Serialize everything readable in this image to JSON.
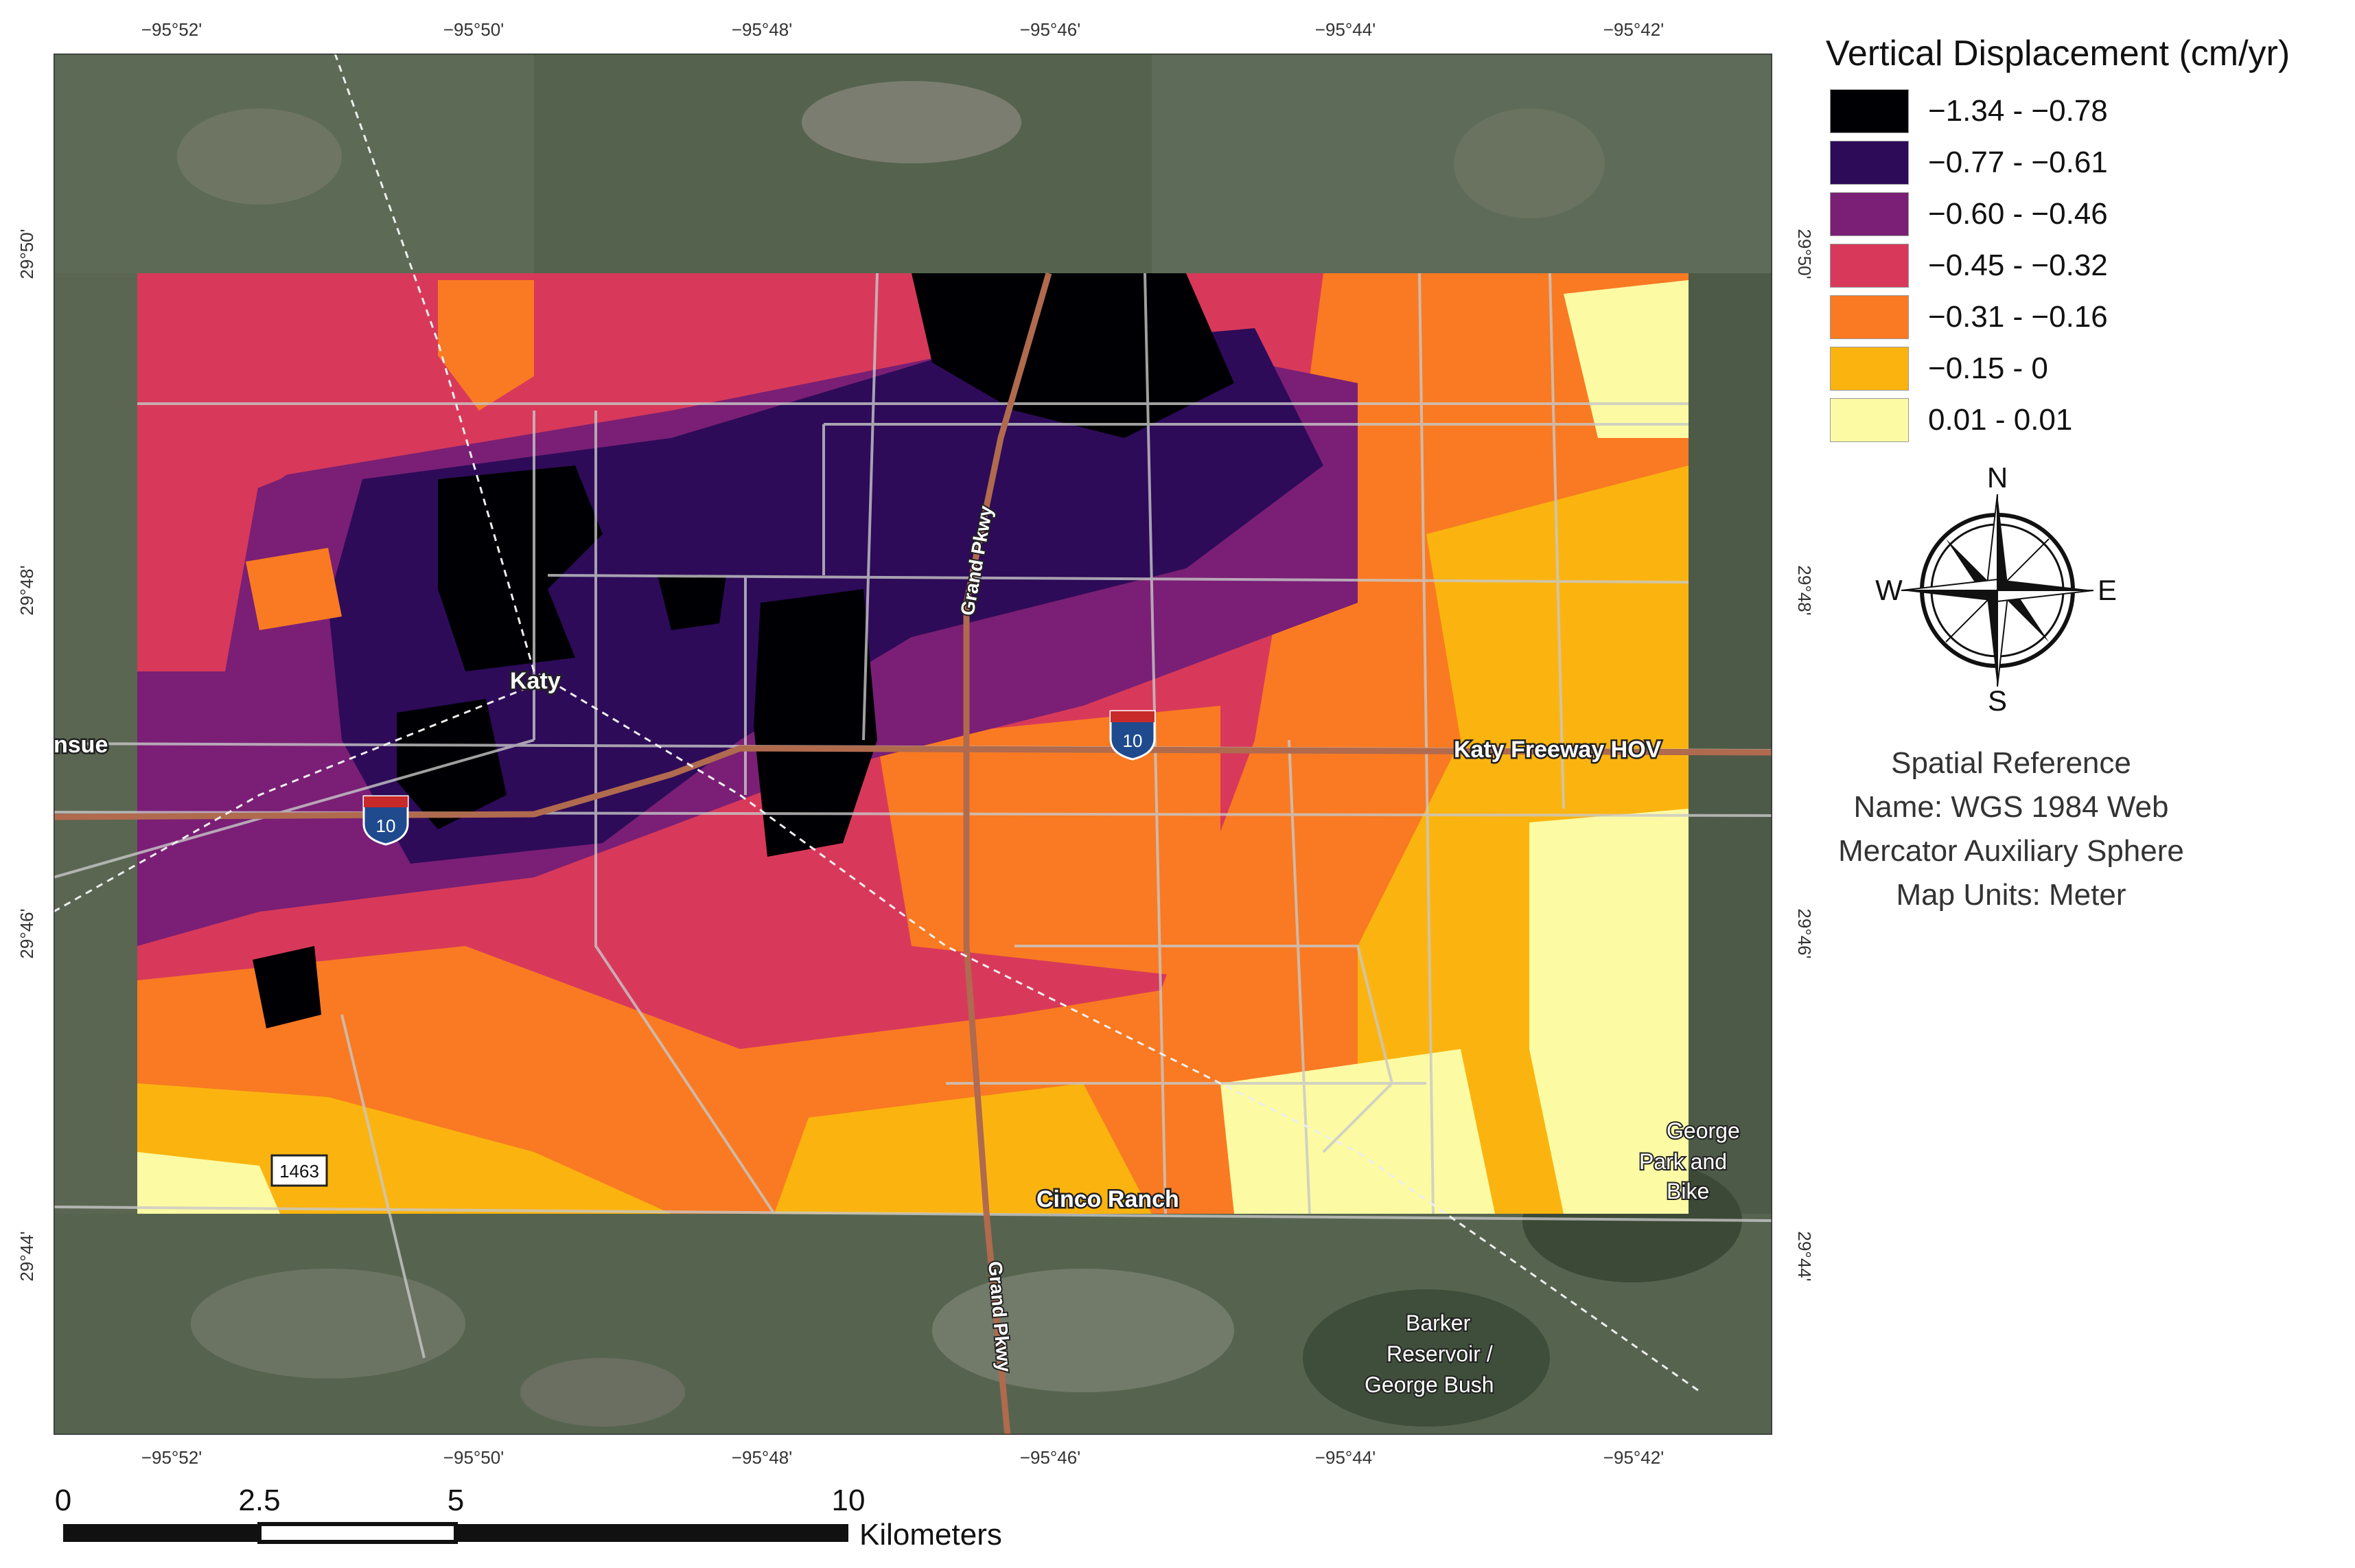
{
  "legend": {
    "title": "Vertical Displacement (cm/yr)",
    "items": [
      {
        "label": "−1.34 - −0.78",
        "color": "#000004"
      },
      {
        "label": "−0.77 - −0.61",
        "color": "#2d0b59"
      },
      {
        "label": "−0.60 - −0.46",
        "color": "#7a1f75"
      },
      {
        "label": "−0.45 - −0.32",
        "color": "#d8395a"
      },
      {
        "label": "−0.31 - −0.16",
        "color": "#f97a22"
      },
      {
        "label": "−0.15 - 0",
        "color": "#fbb40f"
      },
      {
        "label": "0.01 - 0.01",
        "color": "#fcfba4"
      }
    ]
  },
  "coords": {
    "longitudes": [
      "−95°52'",
      "−95°50'",
      "−95°48'",
      "−95°46'",
      "−95°44'",
      "−95°42'"
    ],
    "latitudes": [
      "29°50'",
      "29°48'",
      "29°46'",
      "29°44'"
    ]
  },
  "places": {
    "katy": "Katy",
    "brookshire_partial": "nsue",
    "cinco_ranch": "Cinco Ranch",
    "katy_freeway": "Katy Freeway HOV",
    "george_park_1": "George",
    "george_park_2": "Park and",
    "george_park_3": "Bike",
    "barker_1": "Barker",
    "barker_2": "Reservoir /",
    "barker_3": "George Bush"
  },
  "roads": {
    "grand_pkwy": "Grand Pkwy",
    "interstate": "10",
    "fm": "1463"
  },
  "compass": {
    "n": "N",
    "s": "S",
    "e": "E",
    "w": "W"
  },
  "spatial_reference": {
    "line1": "Spatial Reference",
    "line2": "Name: WGS 1984 Web",
    "line3": "Mercator Auxiliary Sphere",
    "line4": "Map Units: Meter"
  },
  "scalebar": {
    "ticks": [
      "0",
      "2.5",
      "5",
      "10"
    ],
    "unit": "Kilometers"
  }
}
